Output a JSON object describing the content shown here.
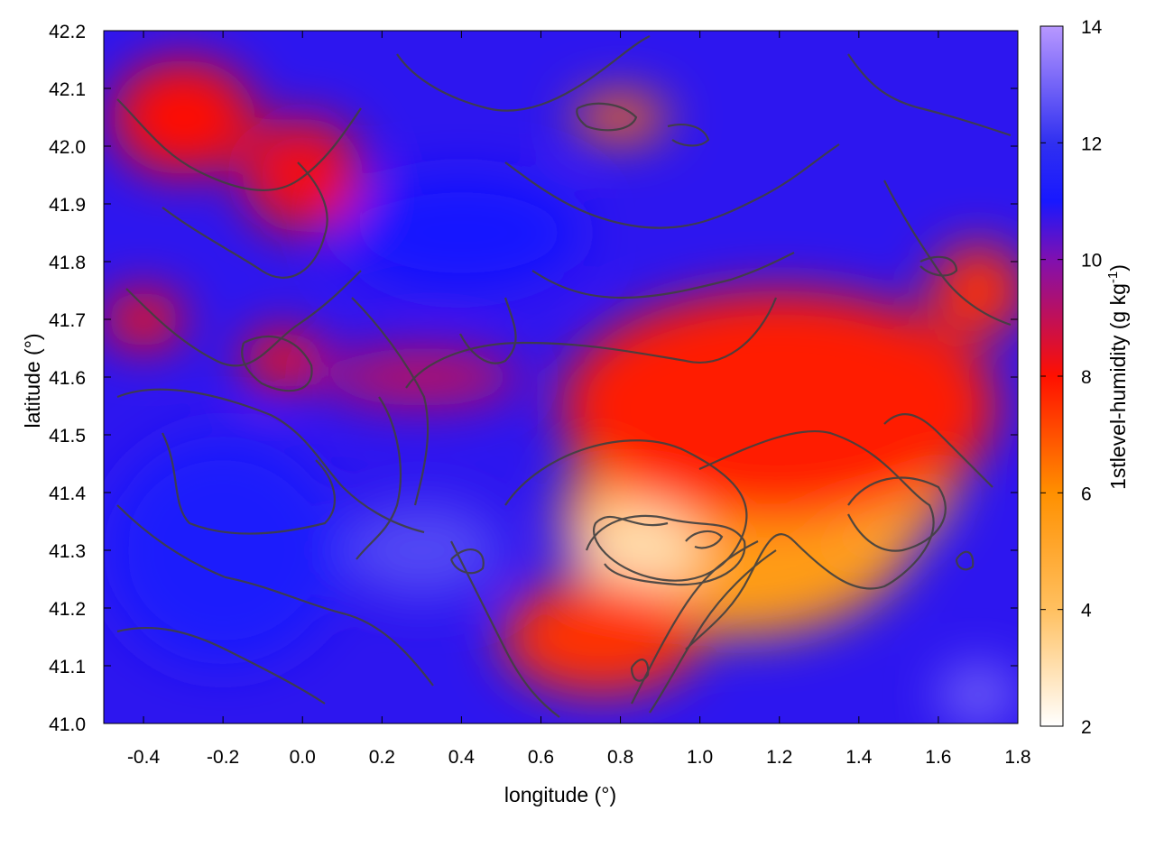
{
  "chart_data": {
    "type": "heatmap",
    "xlabel": "longitude (°)",
    "ylabel": "latitude (°)",
    "colorbar_label": "1stlevel-humidity (g kg",
    "colorbar_label_sup": "-1",
    "colorbar_label_close": ")",
    "xlim": [
      -0.5,
      1.8
    ],
    "ylim": [
      41.0,
      42.2
    ],
    "xticks": [
      -0.4,
      -0.2,
      0.0,
      0.2,
      0.4,
      0.6,
      0.8,
      1.0,
      1.2,
      1.4,
      1.6,
      1.8
    ],
    "xtick_labels": [
      "-0.4",
      "-0.2",
      "0.0",
      "0.2",
      "0.4",
      "0.6",
      "0.8",
      "1.0",
      "1.2",
      "1.4",
      "1.6",
      "1.8"
    ],
    "yticks": [
      41.0,
      41.1,
      41.2,
      41.3,
      41.4,
      41.5,
      41.6,
      41.7,
      41.8,
      41.9,
      42.0,
      42.1,
      42.2
    ],
    "ytick_labels": [
      "41.0",
      "41.1",
      "41.2",
      "41.3",
      "41.4",
      "41.5",
      "41.6",
      "41.7",
      "41.8",
      "41.9",
      "42.0",
      "42.1",
      "42.2"
    ],
    "colorbar_range": [
      2,
      14
    ],
    "colorbar_ticks": [
      2,
      4,
      6,
      8,
      10,
      12,
      14
    ],
    "colorbar_tick_labels": [
      "2",
      "4",
      "6",
      "8",
      "10",
      "12",
      "14"
    ],
    "colormap": [
      {
        "value": 2,
        "color": "#ffffff"
      },
      {
        "value": 4,
        "color": "#ffc060"
      },
      {
        "value": 6,
        "color": "#ff9000"
      },
      {
        "value": 8,
        "color": "#ff1000"
      },
      {
        "value": 10,
        "color": "#8010b0"
      },
      {
        "value": 11,
        "color": "#1818ff"
      },
      {
        "value": 12,
        "color": "#3030f0"
      },
      {
        "value": 14,
        "color": "#b898ff"
      }
    ],
    "field_regions": [
      {
        "lon": 1.1,
        "lat": 41.35,
        "rx": 0.45,
        "ry": 0.2,
        "value": 5.5
      },
      {
        "lon": 0.85,
        "lat": 41.3,
        "rx": 0.15,
        "ry": 0.08,
        "value": 3.0
      },
      {
        "lon": 1.45,
        "lat": 41.45,
        "rx": 0.2,
        "ry": 0.15,
        "value": 5.0
      },
      {
        "lon": 1.2,
        "lat": 41.55,
        "rx": 0.55,
        "ry": 0.2,
        "value": 7.8
      },
      {
        "lon": 0.75,
        "lat": 41.15,
        "rx": 0.25,
        "ry": 0.1,
        "value": 7.5
      },
      {
        "lon": -0.05,
        "lat": 41.63,
        "rx": 0.1,
        "ry": 0.05,
        "value": 8.0
      },
      {
        "lon": -0.4,
        "lat": 41.7,
        "rx": 0.1,
        "ry": 0.05,
        "value": 8.0
      },
      {
        "lon": 0.0,
        "lat": 41.95,
        "rx": 0.15,
        "ry": 0.1,
        "value": 8.2
      },
      {
        "lon": -0.3,
        "lat": 42.05,
        "rx": 0.18,
        "ry": 0.1,
        "value": 8.0
      },
      {
        "lon": 0.8,
        "lat": 42.05,
        "rx": 0.12,
        "ry": 0.04,
        "value": 6.5
      },
      {
        "lon": 1.7,
        "lat": 41.75,
        "rx": 0.12,
        "ry": 0.08,
        "value": 7.5
      },
      {
        "lon": 0.3,
        "lat": 41.6,
        "rx": 0.25,
        "ry": 0.05,
        "value": 9.0
      },
      {
        "lon": 0.3,
        "lat": 41.3,
        "rx": 0.2,
        "ry": 0.08,
        "value": 12.5
      },
      {
        "lon": 1.7,
        "lat": 41.05,
        "rx": 0.1,
        "ry": 0.05,
        "value": 13.0
      },
      {
        "lon": 0.4,
        "lat": 41.85,
        "rx": 0.3,
        "ry": 0.1,
        "value": 11.0
      },
      {
        "lon": -0.2,
        "lat": 41.3,
        "rx": 0.3,
        "ry": 0.2,
        "value": 11.2
      }
    ],
    "background_value": 10.8,
    "grid": false,
    "contours": true
  }
}
